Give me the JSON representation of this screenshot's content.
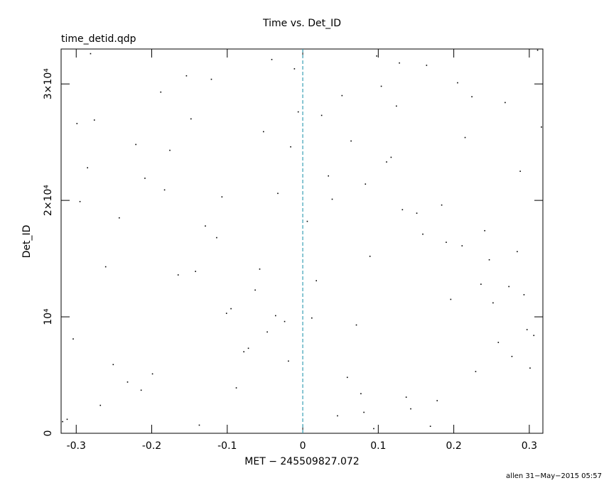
{
  "chart_data": {
    "type": "scatter",
    "title": "Time vs. Det_ID",
    "subtitle": "time_detid.qdp",
    "x_label": "MET − 245509827.072",
    "y_label": "Det_ID",
    "footer": "allen 31−May−2015 05:57",
    "color": "#000000",
    "reference_line_x": 0,
    "reference_line_color": "#3a9fb5",
    "xlim": [
      -0.32,
      0.318
    ],
    "ylim": [
      0,
      33000
    ],
    "xticks": [
      -0.3,
      -0.2,
      -0.1,
      0,
      0.1,
      0.2,
      0.3
    ],
    "yticks": [
      0,
      {
        "value": 10000,
        "label": "10⁴"
      },
      {
        "value": 20000,
        "label": "2×10⁴"
      },
      {
        "value": 30000,
        "label": "3×10⁴"
      }
    ],
    "x": [
      -0.312,
      0.215,
      -0.047,
      0.128,
      -0.261,
      0.301,
      0.034,
      -0.188,
      0.077,
      -0.129,
      0.252,
      -0.006,
      0.169,
      -0.295,
      0.098,
      -0.072,
      0.284,
      -0.221,
      0.012,
      0.143,
      -0.154,
      0.236,
      -0.033,
      0.059,
      -0.276,
      0.19,
      -0.101,
      0.311,
      -0.019,
      0.117,
      -0.243,
      0.046,
      0.268,
      -0.165,
      0.083,
      -0.304,
      0.205,
      -0.088,
      0.159,
      -0.052,
      0.293,
      -0.199,
      0.025,
      0.132,
      -0.137,
      0.247,
      -0.011,
      0.071,
      -0.285,
      0.178,
      -0.114,
      0.316,
      -0.063,
      0.104,
      -0.232,
      0.039,
      0.259,
      -0.176,
      0.089,
      -0.318,
      0.224,
      -0.095,
      0.151,
      -0.041,
      0.277,
      -0.209,
      0.018,
      0.137,
      -0.148,
      0.241,
      -0.024,
      0.064,
      -0.268,
      0.184,
      -0.121,
      0.306,
      -0.057,
      0.111,
      -0.251,
      0.052,
      0.273,
      -0.183,
      0.094,
      -0.299,
      0.211,
      -0.078,
      0.164,
      -0.036,
      0.288,
      -0.214,
      0.006,
      0.124,
      -0.142,
      0.229,
      -0.016,
      0.081,
      -0.281,
      0.196,
      -0.107,
      0.297
    ],
    "values": [
      1200,
      25400,
      8700,
      31800,
      14300,
      5600,
      22100,
      29300,
      3400,
      17800,
      11200,
      27600,
      600,
      19900,
      32400,
      7300,
      15600,
      24800,
      9900,
      2100,
      30700,
      12800,
      20600,
      4800,
      26900,
      16400,
      10300,
      32900,
      6200,
      23700,
      18500,
      1500,
      28400,
      13600,
      21400,
      8100,
      30100,
      3900,
      17100,
      25900,
      11900,
      5100,
      27300,
      19200,
      700,
      14900,
      31300,
      9300,
      22800,
      2800,
      16800,
      26300,
      12300,
      29800,
      4400,
      20100,
      7800,
      24300,
      15200,
      1000,
      28900,
      10700,
      18900,
      32100,
      6600,
      21900,
      13100,
      3100,
      27000,
      17400,
      9600,
      25100,
      2400,
      19600,
      30400,
      8400,
      14100,
      23300,
      5900,
      29000,
      12600,
      20900,
      400,
      26600,
      16100,
      7000,
      31600,
      10100,
      22500,
      3700,
      18200,
      28100,
      13900,
      5300,
      24600,
      1800,
      32600,
      11500,
      20300,
      8900
    ]
  }
}
